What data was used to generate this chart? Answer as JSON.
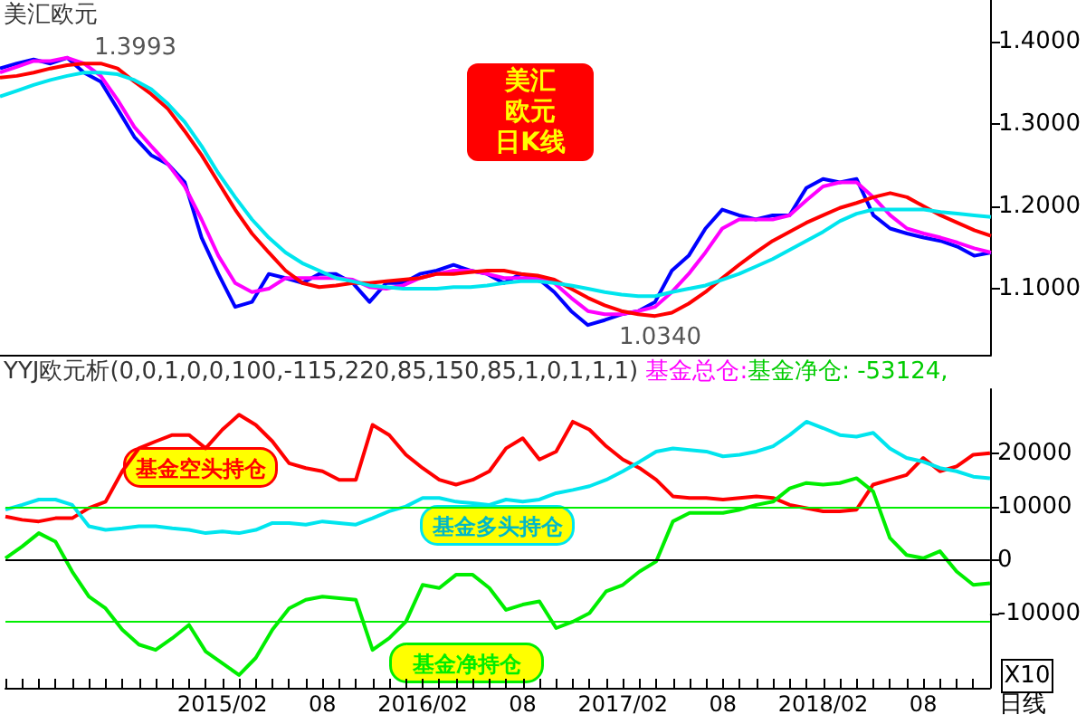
{
  "chart_data": [
    {
      "type": "line",
      "title": "美汇欧元",
      "categories": [
        null,
        null,
        null,
        null,
        null,
        null,
        null,
        null,
        null,
        null,
        null,
        null,
        null,
        "2015/02",
        null,
        null,
        null,
        null,
        null,
        "08",
        null,
        null,
        null,
        null,
        null,
        "2016/02",
        null,
        null,
        null,
        null,
        null,
        "08",
        null,
        null,
        null,
        null,
        null,
        "2017/02",
        null,
        null,
        null,
        null,
        null,
        "08",
        null,
        null,
        null,
        null,
        null,
        "2018/02",
        null,
        null,
        null,
        null,
        null,
        "08",
        null,
        null,
        null,
        null
      ],
      "series": [
        {
          "color": "#0000ff",
          "values": [
            1.367,
            1.373,
            1.378,
            1.373,
            1.38,
            1.362,
            1.351,
            1.318,
            1.284,
            1.262,
            1.251,
            1.229,
            1.162,
            1.118,
            1.078,
            1.084,
            1.118,
            1.113,
            1.107,
            1.118,
            1.118,
            1.107,
            1.084,
            1.107,
            1.107,
            1.118,
            1.122,
            1.129,
            1.122,
            1.118,
            1.107,
            1.118,
            1.113,
            1.096,
            1.073,
            1.056,
            1.062,
            1.069,
            1.073,
            1.084,
            1.122,
            1.14,
            1.173,
            1.196,
            1.189,
            1.184,
            1.189,
            1.189,
            1.222,
            1.233,
            1.229,
            1.233,
            1.189,
            1.173,
            1.167,
            1.162,
            1.158,
            1.151,
            1.14,
            1.144
          ]
        },
        {
          "color": "#ff00ff",
          "values": [
            1.362,
            1.369,
            1.376,
            1.376,
            1.38,
            1.373,
            1.358,
            1.329,
            1.296,
            1.273,
            1.251,
            1.224,
            1.184,
            1.14,
            1.107,
            1.096,
            1.1,
            1.113,
            1.113,
            1.113,
            1.113,
            1.111,
            1.102,
            1.1,
            1.104,
            1.113,
            1.118,
            1.122,
            1.122,
            1.118,
            1.113,
            1.113,
            1.113,
            1.107,
            1.089,
            1.073,
            1.069,
            1.069,
            1.073,
            1.078,
            1.096,
            1.118,
            1.144,
            1.173,
            1.184,
            1.184,
            1.184,
            1.189,
            1.207,
            1.224,
            1.229,
            1.229,
            1.211,
            1.189,
            1.173,
            1.167,
            1.162,
            1.156,
            1.149,
            1.144
          ]
        },
        {
          "color": "#ff0000",
          "values": [
            1.356,
            1.358,
            1.362,
            1.367,
            1.371,
            1.373,
            1.373,
            1.367,
            1.351,
            1.336,
            1.318,
            1.291,
            1.262,
            1.229,
            1.196,
            1.167,
            1.144,
            1.122,
            1.107,
            1.102,
            1.104,
            1.107,
            1.107,
            1.109,
            1.111,
            1.113,
            1.118,
            1.118,
            1.12,
            1.122,
            1.122,
            1.118,
            1.116,
            1.111,
            1.1,
            1.089,
            1.08,
            1.073,
            1.069,
            1.067,
            1.071,
            1.082,
            1.096,
            1.113,
            1.129,
            1.144,
            1.158,
            1.169,
            1.18,
            1.189,
            1.198,
            1.204,
            1.211,
            1.216,
            1.211,
            1.2,
            1.189,
            1.18,
            1.171,
            1.164
          ]
        },
        {
          "color": "#00e5ee",
          "values": [
            1.333,
            1.34,
            1.347,
            1.353,
            1.358,
            1.362,
            1.362,
            1.36,
            1.353,
            1.342,
            1.324,
            1.302,
            1.273,
            1.24,
            1.211,
            1.184,
            1.162,
            1.144,
            1.131,
            1.122,
            1.113,
            1.109,
            1.104,
            1.102,
            1.1,
            1.1,
            1.1,
            1.102,
            1.102,
            1.104,
            1.107,
            1.109,
            1.109,
            1.107,
            1.104,
            1.1,
            1.096,
            1.093,
            1.091,
            1.091,
            1.096,
            1.1,
            1.104,
            1.111,
            1.118,
            1.127,
            1.136,
            1.147,
            1.158,
            1.169,
            1.182,
            1.191,
            1.196,
            1.196,
            1.196,
            1.196,
            1.193,
            1.191,
            1.189,
            1.187
          ]
        }
      ],
      "ylim": [
        1.02,
        1.45
      ],
      "yticks": [
        {
          "value": 1.1,
          "label": "1.1000"
        },
        {
          "value": 1.2,
          "label": "1.2000"
        },
        {
          "value": 1.3,
          "label": "1.3000"
        },
        {
          "value": 1.4,
          "label": "1.4000"
        }
      ],
      "tick_labels": "y",
      "legend": false,
      "marker": "none",
      "annotations": [
        "1.3993",
        "1.0340",
        "美汇欧元日K线"
      ]
    },
    {
      "type": "line",
      "title": "YYJ欧元析(0,0,1,0,0,100,-115,220,85,150,85,1,0,1,1,1)",
      "categories": [
        null,
        null,
        null,
        null,
        null,
        null,
        null,
        null,
        null,
        null,
        null,
        null,
        null,
        "2015/02",
        null,
        null,
        null,
        null,
        null,
        "08",
        null,
        null,
        null,
        null,
        null,
        "2016/02",
        null,
        null,
        null,
        null,
        null,
        "08",
        null,
        null,
        null,
        null,
        null,
        "2017/02",
        null,
        null,
        null,
        null,
        null,
        "08",
        null,
        null,
        null,
        null,
        null,
        "2018/02",
        null,
        null,
        null,
        null,
        null,
        "08",
        null,
        null,
        null,
        null
      ],
      "series": [
        {
          "name": "基金空头持仓",
          "color": "#ff0000",
          "values": [
            8100,
            7500,
            7200,
            7800,
            7800,
            9700,
            10900,
            16600,
            20900,
            22200,
            23400,
            23400,
            20900,
            24400,
            27200,
            25300,
            22200,
            18100,
            17200,
            16600,
            15000,
            15000,
            25300,
            23400,
            19700,
            17200,
            15000,
            14100,
            15000,
            16600,
            20900,
            22800,
            18800,
            20300,
            25900,
            24400,
            21300,
            18800,
            17200,
            15000,
            11900,
            11600,
            11600,
            11300,
            11600,
            11900,
            11600,
            10300,
            9700,
            9100,
            9100,
            9400,
            14100,
            15000,
            15900,
            19100,
            16600,
            17500,
            19700,
            20000
          ]
        },
        {
          "name": "基金多头持仓",
          "color": "#00e5ee",
          "values": [
            9400,
            10300,
            11300,
            11300,
            10300,
            6300,
            5600,
            5900,
            6300,
            6300,
            5900,
            5600,
            5000,
            5300,
            5000,
            5600,
            6900,
            6900,
            6600,
            7200,
            6900,
            6600,
            7800,
            9100,
            10000,
            11600,
            11600,
            10900,
            10600,
            10300,
            11300,
            10900,
            11300,
            12500,
            13100,
            13800,
            15000,
            16600,
            18400,
            20300,
            20900,
            20600,
            20300,
            19400,
            19700,
            20300,
            21300,
            23400,
            25900,
            24700,
            23400,
            23100,
            23800,
            20900,
            19100,
            18400,
            17200,
            16600,
            15600,
            15300
          ]
        },
        {
          "name": "基金净持仓",
          "color": "#00ee00",
          "values": [
            300,
            2500,
            5000,
            3400,
            -2200,
            -6900,
            -9100,
            -13100,
            -15900,
            -16900,
            -14700,
            -12200,
            -17200,
            -19400,
            -21600,
            -18400,
            -13100,
            -9100,
            -7500,
            -6900,
            -7200,
            -7500,
            -16900,
            -14700,
            -11600,
            -4700,
            -5300,
            -2800,
            -2800,
            -5300,
            -9400,
            -8400,
            -7800,
            -12800,
            -11600,
            -10000,
            -5900,
            -4700,
            -2200,
            -300,
            7200,
            8800,
            8800,
            8800,
            9400,
            10300,
            10900,
            13400,
            14400,
            14100,
            14400,
            15300,
            12800,
            4100,
            900,
            300,
            1600,
            -2200,
            -4700,
            -4400
          ]
        }
      ],
      "ylim": [
        -24000,
        32000
      ],
      "yticks": [
        -10000,
        0,
        10000,
        20000
      ],
      "ref_lines": [
        {
          "axis": "y",
          "value": 10000,
          "color": "#00ee00"
        },
        {
          "axis": "y",
          "value": 0,
          "color": "#000000"
        },
        {
          "axis": "y",
          "value": -11500,
          "color": "#00ee00"
        }
      ],
      "legend": false,
      "marker": "none",
      "annotations": [
        "基金总仓:",
        "基金净仓: -53124,",
        "X10",
        "日线"
      ]
    }
  ]
}
